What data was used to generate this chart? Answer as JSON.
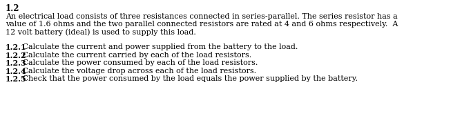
{
  "heading": "1.2",
  "paragraph_lines": [
    "An electrical load consists of three resistances connected in series-parallel. The series resistor has a",
    "value of 1.6 ohms and the two parallel connected resistors are rated at 4 and 6 ohms respectively.  A",
    "12 volt battery (ideal) is used to supply this load."
  ],
  "questions": [
    {
      "num": "1.2.1",
      "text": " Calculate the current and power supplied from the battery to the load."
    },
    {
      "num": "1.2.2",
      "text": " Calculate the current carried by each of the load resistors."
    },
    {
      "num": "1.2.3",
      "text": " Calculate the power consumed by each of the load resistors."
    },
    {
      "num": "1.2.4",
      "text": " Calculate the voltage drop across each of the load resistors."
    },
    {
      "num": "1.2.5",
      "text": " Check that the power consumed by the load equals the power supplied by the battery."
    }
  ],
  "bg_color": "#ffffff",
  "text_color": "#000000",
  "font_size": 8.0,
  "heading_font_size": 8.5,
  "font_family": "serif",
  "fig_width": 6.82,
  "fig_height": 1.97,
  "dpi": 100
}
